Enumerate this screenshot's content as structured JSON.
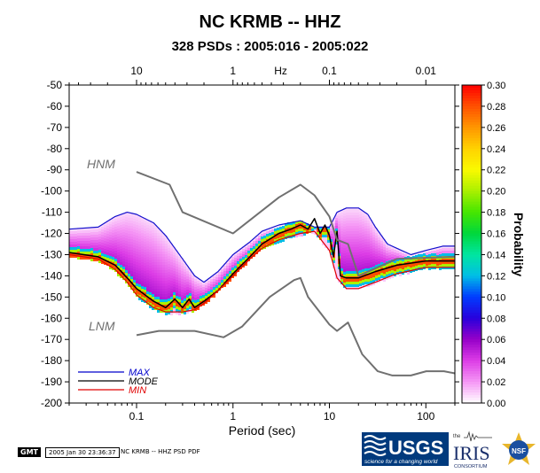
{
  "title": "NC KRMB -- HHZ",
  "subtitle": "328 PSDs : 2005:016 - 2005:022",
  "footer": {
    "badge": "GMT",
    "timestamp": "2005 Jan 30 23:36:37",
    "label": "NC KRMB -- HHZ PSD PDF",
    "usgs_text": "USGS",
    "usgs_tagline": "science for a changing world",
    "iris_the": "the",
    "iris_text": "IRIS",
    "iris_sub": "CONSORTIUM",
    "nsf_text": "NSF"
  },
  "chart_data": {
    "type": "heatmap",
    "title": "NC KRMB -- HHZ",
    "subtitle": "328 PSDs : 2005:016 - 2005:022",
    "xlabel": "Period (sec)",
    "x_scale": "log",
    "xlim": [
      0.02,
      200
    ],
    "x_ticks": [
      0.1,
      1,
      10,
      100
    ],
    "x_tick_labels": [
      "0.1",
      "1",
      "10",
      "100"
    ],
    "top_axis_label": "Hz",
    "top_ticks": [
      10,
      1,
      0.1,
      0.01
    ],
    "top_tick_labels": [
      "10",
      "1",
      "0.1",
      "0.01"
    ],
    "ylim": [
      -200,
      -50
    ],
    "y_ticks": [
      -50,
      -60,
      -70,
      -80,
      -90,
      -100,
      -110,
      -120,
      -130,
      -140,
      -150,
      -160,
      -170,
      -180,
      -190,
      -200
    ],
    "colorbar": {
      "label": "Probability",
      "range": [
        0,
        0.3
      ],
      "ticks": [
        0.3,
        0.28,
        0.26,
        0.24,
        0.22,
        0.2,
        0.18,
        0.16,
        0.14,
        0.12,
        0.1,
        0.08,
        0.06,
        0.04,
        0.02,
        0.0
      ],
      "tick_labels": [
        "0.30",
        "0.28",
        "0.26",
        "0.24",
        "0.22",
        "0.20",
        "0.18",
        "0.16",
        "0.14",
        "0.12",
        "0.10",
        "0.08",
        "0.06",
        "0.04",
        "0.02",
        "0.00"
      ]
    },
    "noise_model_labels": {
      "high": "HNM",
      "low": "LNM"
    },
    "legend": {
      "position": "bottom-left",
      "entries": [
        {
          "name": "MAX",
          "color": "#0000cc"
        },
        {
          "name": "MODE",
          "color": "#000000"
        },
        {
          "name": "MIN",
          "color": "#e00000"
        }
      ]
    },
    "series": [
      {
        "name": "MAX",
        "color": "#1010cc",
        "x": [
          0.02,
          0.04,
          0.06,
          0.08,
          0.1,
          0.15,
          0.2,
          0.3,
          0.4,
          0.5,
          0.7,
          1,
          1.5,
          2,
          3,
          5,
          7,
          10,
          12,
          15,
          20,
          25,
          30,
          40,
          50,
          70,
          100,
          150,
          200
        ],
        "y": [
          -118,
          -117,
          -112,
          -110,
          -111,
          -115,
          -121,
          -132,
          -140,
          -143,
          -138,
          -130,
          -124,
          -119,
          -116,
          -114,
          -117,
          -117,
          -110,
          -108,
          -108,
          -111,
          -117,
          -125,
          -127,
          -130,
          -128,
          -126,
          -126
        ]
      },
      {
        "name": "MODE",
        "color": "#000000",
        "x": [
          0.02,
          0.04,
          0.06,
          0.08,
          0.1,
          0.15,
          0.2,
          0.25,
          0.3,
          0.35,
          0.4,
          0.5,
          0.7,
          1,
          1.5,
          2,
          3,
          4,
          5,
          6,
          7,
          8,
          9,
          10,
          11,
          12,
          13,
          15,
          20,
          30,
          50,
          100,
          200
        ],
        "y": [
          -129,
          -131,
          -135,
          -141,
          -146,
          -152,
          -155,
          -151,
          -155,
          -151,
          -155,
          -152,
          -147,
          -139,
          -131,
          -125,
          -120,
          -118,
          -116,
          -118,
          -113,
          -120,
          -116,
          -121,
          -131,
          -119,
          -140,
          -141,
          -141,
          -138,
          -135,
          -133,
          -133
        ]
      },
      {
        "name": "MIN",
        "color": "#e00000",
        "x": [
          0.02,
          0.04,
          0.06,
          0.08,
          0.1,
          0.15,
          0.2,
          0.3,
          0.4,
          0.5,
          0.7,
          1,
          1.5,
          2,
          3,
          5,
          7,
          10,
          12,
          15,
          20,
          30,
          50,
          100,
          200
        ],
        "y": [
          -130,
          -132,
          -137,
          -143,
          -149,
          -155,
          -157,
          -157,
          -156,
          -153,
          -147,
          -140,
          -132,
          -127,
          -123,
          -120,
          -119,
          -128,
          -141,
          -146,
          -146,
          -143,
          -139,
          -136,
          -136
        ]
      },
      {
        "name": "HNM",
        "color": "#707070",
        "x": [
          0.1,
          0.22,
          0.3,
          1,
          3,
          5,
          7,
          10,
          12,
          15.6,
          20,
          50,
          200
        ],
        "y": [
          -91,
          -97,
          -110,
          -120,
          -103,
          -97,
          -102,
          -112,
          -123,
          -125,
          -140,
          -132,
          -131
        ]
      },
      {
        "name": "LNM",
        "color": "#707070",
        "x": [
          0.1,
          0.17,
          0.4,
          0.8,
          1.24,
          2.4,
          4.3,
          5,
          6,
          10,
          12,
          15.6,
          21.9,
          31.6,
          45,
          70,
          101,
          154,
          200
        ],
        "y": [
          -168,
          -166,
          -166,
          -169,
          -164,
          -150,
          -142,
          -141,
          -150,
          -163,
          -166,
          -162,
          -177,
          -185,
          -187,
          -187,
          -185,
          -185,
          -186
        ]
      }
    ]
  }
}
